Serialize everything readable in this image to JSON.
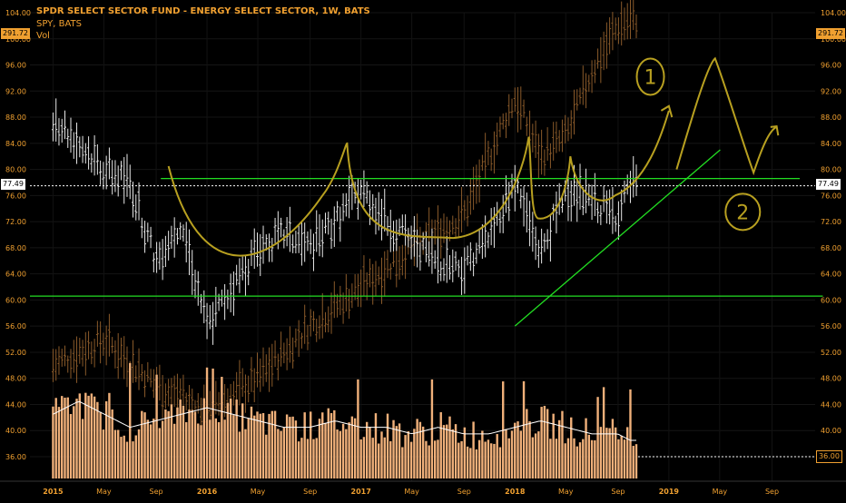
{
  "header": {
    "title": "SPDR SELECT SECTOR FUND - ENERGY SELECT SECTOR, 1W, BATS",
    "overlay": "SPY, BATS",
    "volume": "Vol"
  },
  "tags": {
    "spy_price": "291.72",
    "current_price": "77.49",
    "volume_level": "36.00"
  },
  "colors": {
    "background": "#000000",
    "price_axis": "#f0a030",
    "xle_bars": "#e8e8e8",
    "spy_bars": "#8a5a2a",
    "volume_bars": "#f0b07a",
    "volume_ma": "#ffffff",
    "trendline": "#22dd22",
    "drawing": "#b8a020"
  },
  "annotations": {
    "scenario1": "1",
    "scenario2": "2"
  },
  "chart_data": {
    "type": "bar",
    "title": "SPDR SELECT SECTOR FUND - ENERGY SELECT SECTOR, 1W, BATS",
    "xlabel": "",
    "ylabel": "",
    "ylim": [
      36,
      104
    ],
    "y_axis_position": "both",
    "y_ticks": [
      "104.00",
      "100.00",
      "96.00",
      "92.00",
      "88.00",
      "84.00",
      "80.00",
      "76.00",
      "72.00",
      "68.00",
      "64.00",
      "60.00",
      "56.00",
      "52.00",
      "48.00",
      "44.00",
      "40.00",
      "36.00"
    ],
    "x_ticks": [
      "2015",
      "May",
      "Sep",
      "2016",
      "May",
      "Sep",
      "2017",
      "May",
      "Sep",
      "2018",
      "May",
      "Sep",
      "2019",
      "May",
      "Sep"
    ],
    "legend": "top-left",
    "series": [
      {
        "name": "SPDR SELECT SECTOR FUND - ENERGY SELECT SECTOR, 1W, BATS",
        "style": "ohlc",
        "x": [
          "2015-01",
          "2015-03",
          "2015-05",
          "2015-07",
          "2015-09",
          "2015-11",
          "2016-01",
          "2016-03",
          "2016-05",
          "2016-07",
          "2016-09",
          "2016-11",
          "2017-01",
          "2017-03",
          "2017-05",
          "2017-07",
          "2017-09",
          "2017-11",
          "2018-01",
          "2018-03",
          "2018-05",
          "2018-07",
          "2018-09",
          "2018-10"
        ],
        "values": [
          88,
          84,
          80,
          78,
          66,
          72,
          56,
          62,
          68,
          70,
          68,
          72,
          77,
          72,
          69,
          66,
          65,
          70,
          78,
          67,
          77,
          75,
          73,
          77.49
        ]
      },
      {
        "name": "SPY, BATS",
        "style": "ohlc",
        "x": [
          "2015-01",
          "2015-05",
          "2015-09",
          "2016-01",
          "2016-05",
          "2016-09",
          "2017-01",
          "2017-05",
          "2017-09",
          "2018-01",
          "2018-03",
          "2018-05",
          "2018-07",
          "2018-09",
          "2018-10"
        ],
        "values": [
          50,
          54,
          47,
          43,
          48,
          56,
          62,
          68,
          73,
          91,
          82,
          85,
          95,
          102,
          103
        ]
      },
      {
        "name": "Vol",
        "style": "histogram",
        "x": [
          "2015-01",
          "2015-03",
          "2015-05",
          "2015-07",
          "2015-09",
          "2015-11",
          "2016-01",
          "2016-03",
          "2016-05",
          "2016-07",
          "2016-09",
          "2016-11",
          "2017-01",
          "2017-03",
          "2017-05",
          "2017-07",
          "2017-09",
          "2017-11",
          "2018-01",
          "2018-03",
          "2018-05",
          "2018-07",
          "2018-09",
          "2018-10"
        ],
        "values": [
          40,
          42,
          40,
          38,
          39,
          40,
          41,
          40,
          39,
          38,
          38,
          39,
          38,
          38,
          37,
          38,
          37,
          37,
          38,
          39,
          38,
          37,
          37,
          36
        ]
      }
    ],
    "horizontal_lines": [
      78.6,
      60.6
    ],
    "trendline": {
      "from": [
        "2018-01",
        56
      ],
      "to": [
        "2019-05",
        83
      ]
    }
  }
}
